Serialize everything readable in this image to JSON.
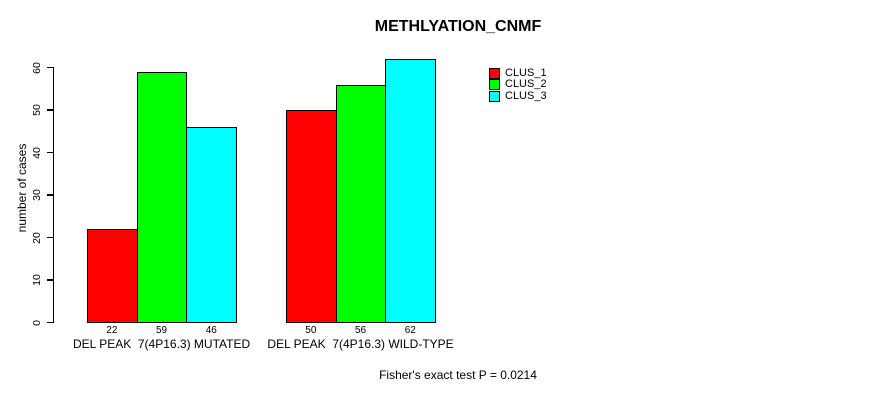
{
  "chart_data": {
    "type": "bar",
    "title": "METHLYATION_CNMF",
    "xlabel": "",
    "ylabel": "number of cases",
    "ylim": [
      0,
      60
    ],
    "yticks": [
      0,
      10,
      20,
      30,
      40,
      50,
      60
    ],
    "grid": false,
    "legend_position": "top-right",
    "categories": [
      "DEL PEAK  7(4P16.3) MUTATED",
      "DEL PEAK  7(4P16.3) WILD-TYPE"
    ],
    "series": [
      {
        "name": "CLUS_1",
        "color": "#ff0000",
        "values": [
          22,
          50
        ]
      },
      {
        "name": "CLUS_2",
        "color": "#00ff00",
        "values": [
          59,
          56
        ]
      },
      {
        "name": "CLUS_3",
        "color": "#00ffff",
        "values": [
          46,
          62
        ]
      }
    ],
    "bar_value_labels": [
      [
        22,
        59,
        46
      ],
      [
        50,
        56,
        62
      ]
    ],
    "annotation": "Fisher's exact test P = 0.0214"
  }
}
